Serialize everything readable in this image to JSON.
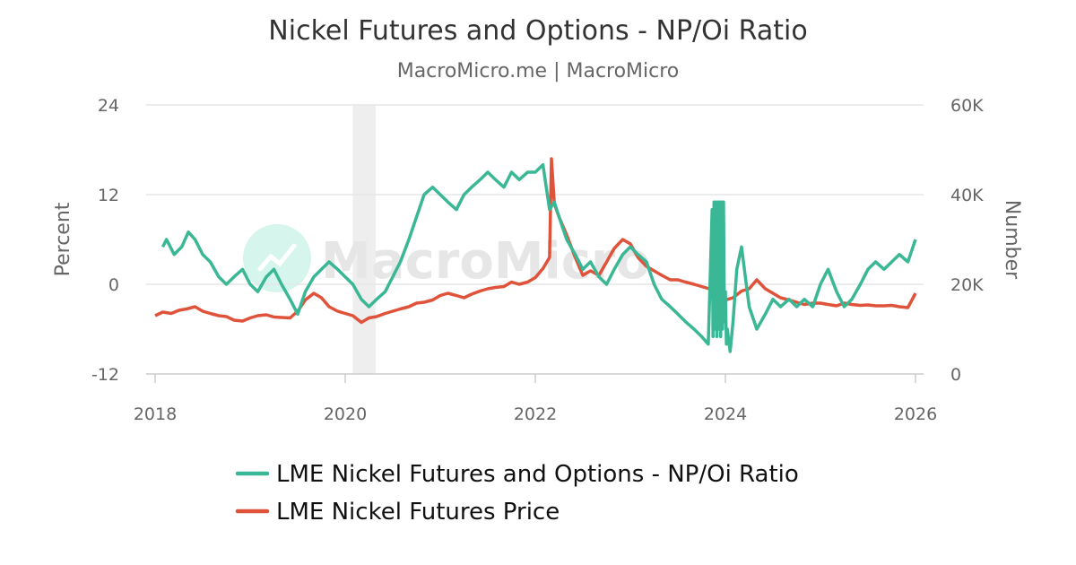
{
  "colors": {
    "ratio": "#3ab795",
    "price": "#e0533b",
    "band": "#eeeeee",
    "watermark_circle": "#d6f5ec"
  },
  "chart_data": {
    "type": "line",
    "title": "Nickel Futures and Options - NP/Oi Ratio",
    "subtitle": "MacroMicro.me | MacroMicro",
    "watermark": "MacroMicro",
    "y_left": {
      "title": "Percent",
      "range": [
        -12,
        24
      ],
      "ticks": [
        24,
        12,
        0,
        -12
      ],
      "tick_labels": [
        "24",
        "12",
        "0",
        "-12"
      ]
    },
    "y_right": {
      "title": "Number",
      "range": [
        0,
        60000
      ],
      "ticks": [
        60000,
        40000,
        20000,
        0
      ],
      "tick_labels": [
        "60K",
        "40K",
        "20K",
        "0"
      ]
    },
    "x_axis": {
      "range": [
        2018,
        2026
      ],
      "ticks": [
        2018,
        2020,
        2022,
        2024,
        2026
      ],
      "tick_labels": [
        "2018",
        "2020",
        "2022",
        "2024",
        "2026"
      ]
    },
    "shaded_band": [
      2020.08,
      2020.32
    ],
    "series": [
      {
        "name": "LME Nickel Futures and Options - NP/Oi Ratio",
        "axis": "left",
        "x": [
          2018.08,
          2018.12,
          2018.2,
          2018.28,
          2018.35,
          2018.42,
          2018.5,
          2018.58,
          2018.67,
          2018.75,
          2018.83,
          2018.92,
          2019.0,
          2019.08,
          2019.17,
          2019.25,
          2019.33,
          2019.42,
          2019.5,
          2019.58,
          2019.67,
          2019.75,
          2019.83,
          2019.92,
          2020.0,
          2020.08,
          2020.17,
          2020.25,
          2020.33,
          2020.42,
          2020.5,
          2020.58,
          2020.67,
          2020.75,
          2020.83,
          2020.92,
          2021.0,
          2021.08,
          2021.17,
          2021.25,
          2021.33,
          2021.42,
          2021.5,
          2021.58,
          2021.67,
          2021.75,
          2021.83,
          2021.92,
          2022.0,
          2022.08,
          2022.15,
          2022.2,
          2022.25,
          2022.33,
          2022.42,
          2022.5,
          2022.58,
          2022.67,
          2022.75,
          2022.83,
          2022.92,
          2023.0,
          2023.08,
          2023.17,
          2023.25,
          2023.33,
          2023.42,
          2023.5,
          2023.58,
          2023.67,
          2023.75,
          2023.82,
          2023.86,
          2023.87,
          2023.88,
          2023.89,
          2023.9,
          2023.91,
          2023.92,
          2023.93,
          2023.94,
          2023.95,
          2023.96,
          2023.97,
          2023.98,
          2023.99,
          2024.0,
          2024.01,
          2024.02,
          2024.05,
          2024.08,
          2024.12,
          2024.17,
          2024.25,
          2024.33,
          2024.42,
          2024.5,
          2024.58,
          2024.67,
          2024.75,
          2024.83,
          2024.92,
          2025.0,
          2025.08,
          2025.17,
          2025.25,
          2025.33,
          2025.42,
          2025.5,
          2025.58,
          2025.67,
          2025.75,
          2025.83,
          2025.92,
          2026.0
        ],
        "values": [
          5,
          6,
          4,
          5,
          7,
          6,
          4,
          3,
          1,
          0,
          1,
          2,
          0,
          -1,
          1,
          2,
          0,
          -2,
          -4,
          -1,
          1,
          2,
          3,
          2,
          1,
          0,
          -2,
          -3,
          -2,
          -1,
          1,
          3,
          6,
          9,
          12,
          13,
          12,
          11,
          10,
          12,
          13,
          14,
          15,
          14,
          13,
          15,
          14,
          15,
          15,
          16,
          10,
          11,
          9,
          6,
          4,
          2,
          3,
          1,
          0,
          2,
          4,
          5,
          4,
          3,
          0,
          -2,
          -3,
          -4,
          -5,
          -6,
          -7,
          -8,
          10,
          -7,
          11,
          -6,
          11,
          -7,
          11,
          -6,
          11,
          -7,
          11,
          -6,
          11,
          -5,
          -1,
          -8,
          -6,
          -9,
          -5,
          2,
          5,
          -3,
          -6,
          -4,
          -2,
          -3,
          -2,
          -3,
          -2,
          -3,
          0,
          2,
          -1,
          -3,
          -2,
          0,
          2,
          3,
          2,
          3,
          4,
          3,
          6
        ]
      },
      {
        "name": "LME Nickel Futures Price",
        "axis": "right",
        "x": [
          2018.0,
          2018.08,
          2018.17,
          2018.25,
          2018.33,
          2018.42,
          2018.5,
          2018.58,
          2018.67,
          2018.75,
          2018.83,
          2018.92,
          2019.0,
          2019.08,
          2019.17,
          2019.25,
          2019.33,
          2019.42,
          2019.5,
          2019.58,
          2019.67,
          2019.75,
          2019.83,
          2019.92,
          2020.0,
          2020.08,
          2020.17,
          2020.25,
          2020.33,
          2020.42,
          2020.5,
          2020.58,
          2020.67,
          2020.75,
          2020.83,
          2020.92,
          2021.0,
          2021.08,
          2021.17,
          2021.25,
          2021.33,
          2021.42,
          2021.5,
          2021.58,
          2021.67,
          2021.75,
          2021.83,
          2021.92,
          2022.0,
          2022.08,
          2022.15,
          2022.17,
          2022.2,
          2022.25,
          2022.33,
          2022.42,
          2022.5,
          2022.58,
          2022.67,
          2022.75,
          2022.83,
          2022.92,
          2023.0,
          2023.08,
          2023.17,
          2023.25,
          2023.33,
          2023.42,
          2023.5,
          2023.58,
          2023.67,
          2023.75,
          2023.83,
          2023.92,
          2024.0,
          2024.08,
          2024.17,
          2024.25,
          2024.33,
          2024.42,
          2024.5,
          2024.58,
          2024.67,
          2024.75,
          2024.83,
          2024.92,
          2025.0,
          2025.08,
          2025.17,
          2025.25,
          2025.33,
          2025.42,
          2025.5,
          2025.58,
          2025.67,
          2025.75,
          2025.83,
          2025.92,
          2026.0
        ],
        "values": [
          13000,
          13800,
          13500,
          14200,
          14500,
          15000,
          14000,
          13500,
          13000,
          12800,
          12000,
          11800,
          12500,
          13000,
          13200,
          12700,
          12600,
          12500,
          14000,
          16500,
          18000,
          17000,
          15000,
          14000,
          13500,
          13000,
          11500,
          12500,
          12800,
          13500,
          14000,
          14500,
          15000,
          15800,
          16000,
          16500,
          17500,
          18000,
          17500,
          17000,
          17800,
          18500,
          19000,
          19300,
          19500,
          20500,
          20000,
          20500,
          21500,
          23500,
          26000,
          48000,
          38000,
          35000,
          31000,
          26000,
          22000,
          23000,
          22000,
          25000,
          28000,
          30000,
          29000,
          26000,
          24000,
          23000,
          22000,
          21000,
          21000,
          20500,
          20000,
          19500,
          19000,
          17500,
          16500,
          17000,
          18500,
          19000,
          21000,
          19000,
          18000,
          17000,
          16500,
          16000,
          15500,
          15800,
          15800,
          15500,
          15200,
          15800,
          15500,
          15300,
          15400,
          15200,
          15200,
          15300,
          15000,
          14800,
          18000
        ]
      }
    ]
  }
}
